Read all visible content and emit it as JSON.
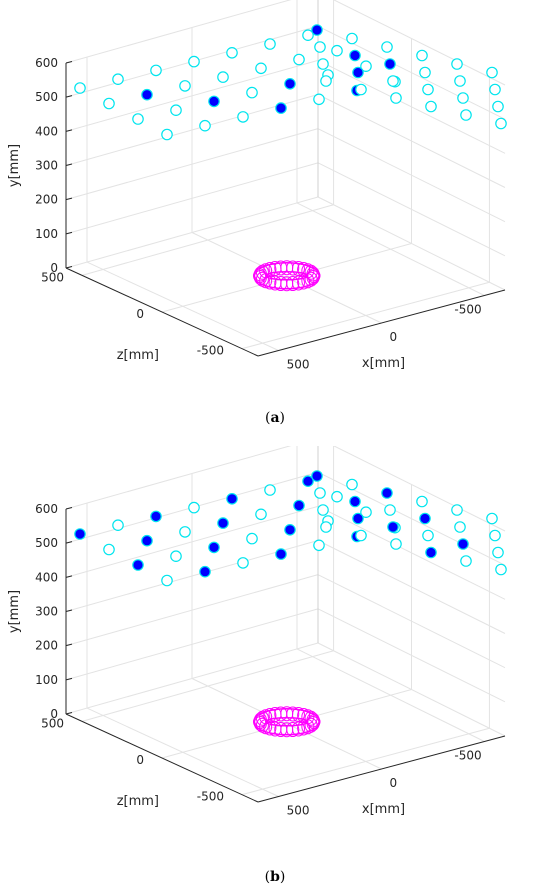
{
  "figure": {
    "panels": [
      {
        "caption_label": "a"
      },
      {
        "caption_label": "b"
      }
    ]
  },
  "chart_data": [
    {
      "type": "scatter3d",
      "xlabel": "x[mm]",
      "ylabel": "y[mm]",
      "zlabel": "z[mm]",
      "x_ticks": [
        "500",
        "0",
        "-500"
      ],
      "y_ticks": [
        "0",
        "100",
        "200",
        "300",
        "400",
        "500",
        "600"
      ],
      "z_ticks": [
        "500",
        "0",
        "-500"
      ],
      "xlim": [
        -600,
        600
      ],
      "ylim": [
        0,
        600
      ],
      "zlim": [
        -600,
        600
      ],
      "grid": true,
      "marker_colors": {
        "hollow": "#00e5ee",
        "filled": "#0000ff",
        "ring": "#ff00ff"
      },
      "series": [
        {
          "name": "",
          "marker": "hollow-circle",
          "points": "back-wall-and-side-wall grid: y in {300,400,500,600}, x/z in {-500,-250,0,250,500}"
        },
        {
          "name": "",
          "marker": "filled-circle",
          "points": [
            [
              -300,
              600,
              500
            ],
            [
              -100,
              500,
              500
            ],
            [
              100,
              400,
              500
            ],
            [
              500,
              300,
              200
            ],
            [
              500,
              500,
              -100
            ],
            [
              500,
              400,
              -300
            ],
            [
              500,
              500,
              -400
            ],
            [
              500,
              600,
              0
            ],
            [
              300,
              300,
              500
            ]
          ]
        }
      ],
      "object": {
        "type": "torus",
        "center": [
          0,
          0,
          0
        ]
      }
    },
    {
      "type": "scatter3d",
      "xlabel": "x[mm]",
      "ylabel": "y[mm]",
      "zlabel": "z[mm]",
      "x_ticks": [
        "500",
        "0",
        "-500"
      ],
      "y_ticks": [
        "0",
        "100",
        "200",
        "300",
        "400",
        "500",
        "600"
      ],
      "z_ticks": [
        "500",
        "0",
        "-500"
      ],
      "xlim": [
        -600,
        600
      ],
      "ylim": [
        0,
        600
      ],
      "zlim": [
        -600,
        600
      ],
      "grid": true,
      "marker_colors": {
        "hollow": "#00e5ee",
        "filled": "#0000ff",
        "ring": "#ff00ff"
      },
      "series": [
        {
          "name": "",
          "marker": "hollow-circle",
          "points": "back-wall-and-side-wall grid: y in {300,400,500,600}, x/z in {-500,-250,0,250,500}"
        },
        {
          "name": "",
          "marker": "filled-circle",
          "points": "alternating pattern across both walls"
        }
      ],
      "object": {
        "type": "torus",
        "center": [
          0,
          0,
          0
        ]
      }
    }
  ]
}
